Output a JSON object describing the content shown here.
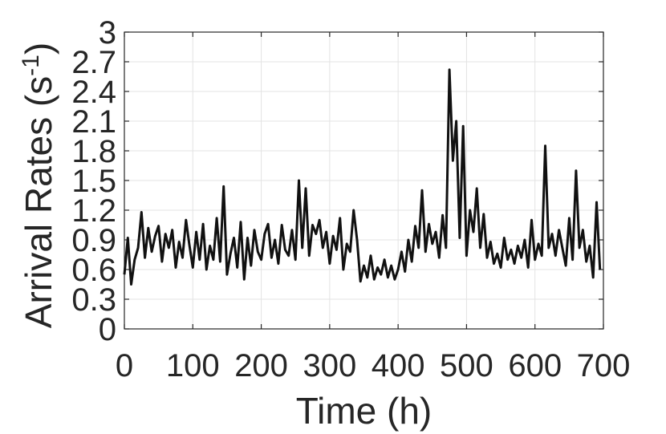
{
  "chart_data": {
    "type": "line",
    "xlabel": "Time (h)",
    "ylabel_main": "Arrival Rates (s",
    "ylabel_sup": "-1",
    "ylabel_close": ")",
    "xlim": [
      0,
      700
    ],
    "ylim": [
      0,
      3
    ],
    "xticks": [
      "0",
      "100",
      "200",
      "300",
      "400",
      "500",
      "600",
      "700"
    ],
    "yticks": [
      "0",
      "0.3",
      "0.6",
      "0.9",
      "1.2",
      "1.5",
      "1.8",
      "2.1",
      "2.4",
      "2.7",
      "3"
    ],
    "grid": true,
    "line_color": "#111111",
    "series": [
      {
        "x": [
          0,
          5,
          10,
          15,
          20,
          25,
          30,
          35,
          40,
          45,
          50,
          55,
          60,
          65,
          70,
          75,
          80,
          85,
          90,
          95,
          100,
          105,
          110,
          115,
          120,
          125,
          130,
          135,
          140,
          145,
          150,
          155,
          160,
          165,
          170,
          175,
          180,
          185,
          190,
          195,
          200,
          205,
          210,
          215,
          220,
          225,
          230,
          235,
          240,
          245,
          250,
          255,
          260,
          265,
          270,
          275,
          280,
          285,
          290,
          295,
          300,
          305,
          310,
          315,
          320,
          325,
          330,
          335,
          340,
          345,
          350,
          355,
          360,
          365,
          370,
          375,
          380,
          385,
          390,
          395,
          400,
          405,
          410,
          415,
          420,
          425,
          430,
          435,
          440,
          445,
          450,
          455,
          460,
          465,
          470,
          475,
          480,
          485,
          490,
          495,
          500,
          505,
          510,
          515,
          520,
          525,
          530,
          535,
          540,
          545,
          550,
          555,
          560,
          565,
          570,
          575,
          580,
          585,
          590,
          595,
          600,
          605,
          610,
          615,
          620,
          625,
          630,
          635,
          640,
          645,
          650,
          655,
          660,
          665,
          670,
          675,
          680,
          685,
          690,
          695
        ],
        "values": [
          0.55,
          0.92,
          0.45,
          0.7,
          0.82,
          1.18,
          0.72,
          1.02,
          0.78,
          0.94,
          1.04,
          0.68,
          0.96,
          0.82,
          1.0,
          0.62,
          0.88,
          0.72,
          1.1,
          0.85,
          0.62,
          0.98,
          0.7,
          1.06,
          0.6,
          0.84,
          0.7,
          1.12,
          0.68,
          1.44,
          0.55,
          0.76,
          0.92,
          0.62,
          1.08,
          0.5,
          0.92,
          0.64,
          1.0,
          0.78,
          0.7,
          0.96,
          1.06,
          0.72,
          0.9,
          0.66,
          1.05,
          0.8,
          0.74,
          1.0,
          0.7,
          1.5,
          0.82,
          1.42,
          0.74,
          1.05,
          0.96,
          1.1,
          0.82,
          0.98,
          0.66,
          0.94,
          0.8,
          1.12,
          0.6,
          0.86,
          0.78,
          1.2,
          0.9,
          0.48,
          0.64,
          0.52,
          0.74,
          0.5,
          0.62,
          0.55,
          0.7,
          0.52,
          0.64,
          0.5,
          0.6,
          0.78,
          0.58,
          0.9,
          0.68,
          1.04,
          0.82,
          1.4,
          0.78,
          1.06,
          0.86,
          0.98,
          0.72,
          1.15,
          0.82,
          2.62,
          1.7,
          2.1,
          0.92,
          2.05,
          0.74,
          1.2,
          0.98,
          1.42,
          0.82,
          1.16,
          0.72,
          0.88,
          0.66,
          0.76,
          0.62,
          0.92,
          0.7,
          0.8,
          0.66,
          0.84,
          0.72,
          0.9,
          0.62,
          1.1,
          0.7,
          0.86,
          0.74,
          1.85,
          0.82,
          0.96,
          0.74,
          1.0,
          0.82,
          0.64,
          1.12,
          0.7,
          1.6,
          0.82,
          1.0,
          0.68,
          0.84,
          0.52,
          1.28,
          0.6
        ]
      }
    ]
  }
}
